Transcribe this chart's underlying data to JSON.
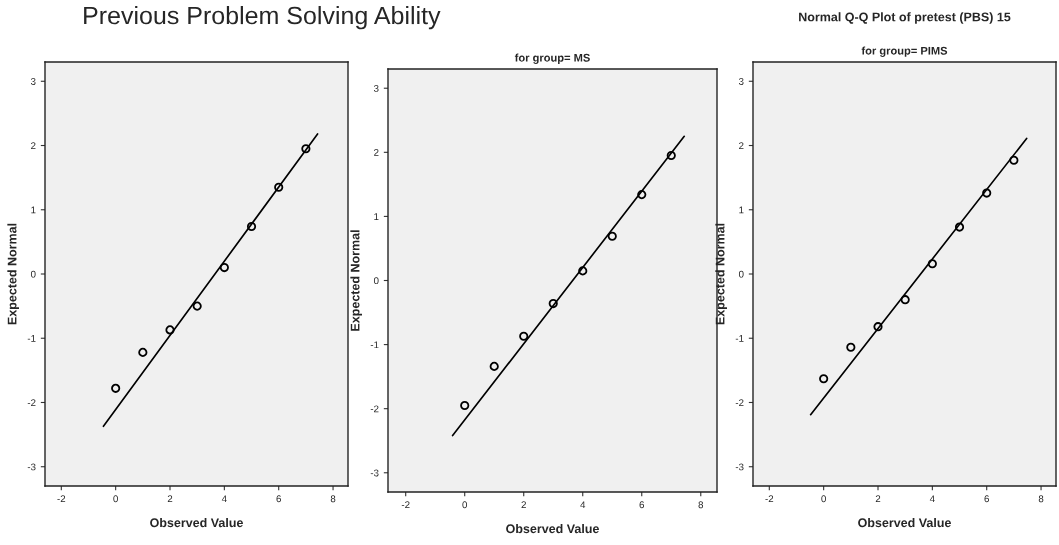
{
  "chart_data": [
    {
      "type": "scatter",
      "title": "Previous Problem Solving Ability",
      "xlabel": "Observed Value",
      "ylabel": "Expected Normal",
      "xlim": [
        -2.6,
        8.55
      ],
      "ylim": [
        -3.3,
        3.3
      ],
      "xticks": [
        -2,
        0,
        2,
        4,
        6,
        8
      ],
      "yticks": [
        -3,
        -2,
        -1,
        0,
        1,
        2,
        3
      ],
      "grid": false,
      "series": [
        {
          "marker": "circle",
          "color": "#000000",
          "x": [
            0,
            1,
            2,
            3,
            4,
            5,
            6,
            7
          ],
          "values": [
            -1.78,
            -1.22,
            -0.87,
            -0.5,
            0.1,
            0.74,
            1.35,
            1.95
          ]
        },
        {
          "type": "line",
          "color": "#000000",
          "x": [
            -0.45,
            7.43
          ],
          "values": [
            -2.37,
            2.18
          ]
        }
      ]
    },
    {
      "type": "scatter",
      "subtitle": "for group= MS",
      "xlabel": "Observed Value",
      "ylabel": "Expected Normal",
      "xlim": [
        -2.6,
        8.55
      ],
      "ylim": [
        -3.3,
        3.3
      ],
      "xticks": [
        -2,
        0,
        2,
        4,
        6,
        8
      ],
      "yticks": [
        -3,
        -2,
        -1,
        0,
        1,
        2,
        3
      ],
      "grid": false,
      "series": [
        {
          "marker": "circle",
          "color": "#000000",
          "x": [
            0,
            1,
            2,
            3,
            4,
            5,
            6,
            7
          ],
          "values": [
            -1.95,
            -1.34,
            -0.87,
            -0.36,
            0.15,
            0.69,
            1.34,
            1.95
          ]
        },
        {
          "type": "line",
          "color": "#000000",
          "x": [
            -0.41,
            7.44
          ],
          "values": [
            -2.42,
            2.25
          ]
        }
      ]
    },
    {
      "type": "scatter",
      "title": "Normal Q-Q Plot of pretest (PBS) 15",
      "subtitle": "for group= PIMS",
      "xlabel": "Observed Value",
      "ylabel": "Expected Normal",
      "xlim": [
        -2.6,
        8.55
      ],
      "ylim": [
        -3.3,
        3.3
      ],
      "xticks": [
        -2,
        0,
        2,
        4,
        6,
        8
      ],
      "yticks": [
        -3,
        -2,
        -1,
        0,
        1,
        2,
        3
      ],
      "grid": false,
      "series": [
        {
          "marker": "circle",
          "color": "#000000",
          "x": [
            0,
            1,
            2,
            3,
            4,
            5,
            6,
            7
          ],
          "values": [
            -1.63,
            -1.14,
            -0.82,
            -0.4,
            0.16,
            0.73,
            1.26,
            1.77
          ]
        },
        {
          "type": "line",
          "color": "#000000",
          "x": [
            -0.48,
            7.47
          ],
          "values": [
            -2.19,
            2.11
          ]
        }
      ]
    }
  ]
}
